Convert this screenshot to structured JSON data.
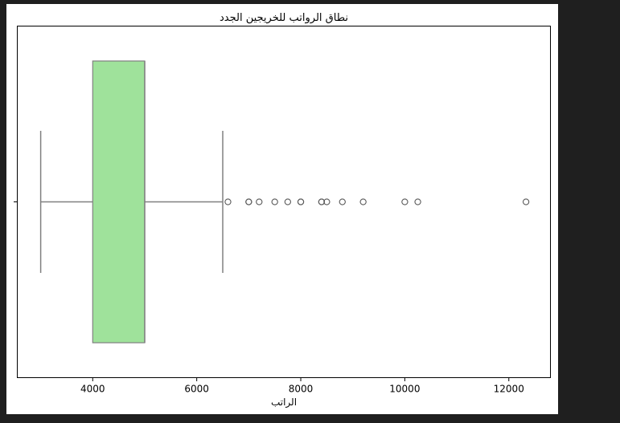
{
  "chart_data": {
    "type": "boxplot",
    "orientation": "horizontal",
    "title": "نطاق الرواتب للخريجين الجدد",
    "xlabel": "الراتب",
    "ylabel": "",
    "xlim": [
      2550,
      12800
    ],
    "xticks": [
      4000,
      6000,
      8000,
      10000,
      12000
    ],
    "xtick_labels": [
      "4000",
      "6000",
      "8000",
      "10000",
      "12000"
    ],
    "grid": false,
    "box": {
      "whisker_low": 3000,
      "q1": 4000,
      "median": 5000,
      "q3": 5000,
      "whisker_high": 6500
    },
    "outliers": [
      6600,
      7000,
      7000,
      7200,
      7500,
      7750,
      8000,
      8000,
      8400,
      8400,
      8500,
      8800,
      9200,
      10000,
      10250,
      12330
    ],
    "box_color": "#9fe29b",
    "line_color": "#808080",
    "outlier_color": "#5a5a5a"
  }
}
